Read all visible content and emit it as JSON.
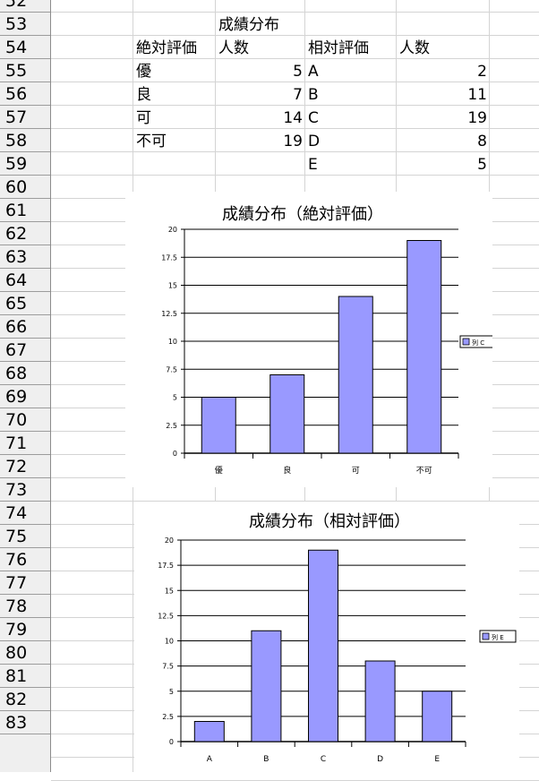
{
  "rows": [
    "52",
    "53",
    "54",
    "55",
    "56",
    "57",
    "58",
    "59",
    "60",
    "61",
    "62",
    "63",
    "64",
    "65",
    "66",
    "67",
    "68",
    "69",
    "70",
    "71",
    "72",
    "73",
    "74",
    "75",
    "76",
    "77",
    "78",
    "79",
    "80",
    "81",
    "82",
    "83"
  ],
  "table": {
    "title": "成績分布",
    "abs_header": "絶対評価",
    "abs_count_header": "人数",
    "rel_header": "相対評価",
    "rel_count_header": "人数",
    "abs_rows": [
      {
        "grade": "優",
        "count": "5"
      },
      {
        "grade": "良",
        "count": "7"
      },
      {
        "grade": "可",
        "count": "14"
      },
      {
        "grade": "不可",
        "count": "19"
      }
    ],
    "rel_rows": [
      {
        "grade": "A",
        "count": "2"
      },
      {
        "grade": "B",
        "count": "11"
      },
      {
        "grade": "C",
        "count": "19"
      },
      {
        "grade": "D",
        "count": "8"
      },
      {
        "grade": "E",
        "count": "5"
      }
    ]
  },
  "chart_data": [
    {
      "type": "bar",
      "title": "成績分布（絶対評価）",
      "categories": [
        "優",
        "良",
        "可",
        "不可"
      ],
      "series": [
        {
          "name": "列 C",
          "values": [
            5,
            7,
            14,
            19
          ]
        }
      ],
      "ylim": [
        0,
        20
      ],
      "yticks": [
        "0",
        "2.5",
        "5",
        "7.5",
        "10",
        "12.5",
        "15",
        "17.5",
        "20"
      ],
      "grid": true,
      "legend": "right",
      "bar_color": "#9999ff"
    },
    {
      "type": "bar",
      "title": "成績分布（相対評価）",
      "categories": [
        "A",
        "B",
        "C",
        "D",
        "E"
      ],
      "series": [
        {
          "name": "列 E",
          "values": [
            2,
            11,
            19,
            8,
            5
          ]
        }
      ],
      "ylim": [
        0,
        20
      ],
      "yticks": [
        "0",
        "2.5",
        "5",
        "7.5",
        "10",
        "12.5",
        "15",
        "17.5",
        "20"
      ],
      "grid": true,
      "legend": "right",
      "bar_color": "#9999ff"
    }
  ]
}
